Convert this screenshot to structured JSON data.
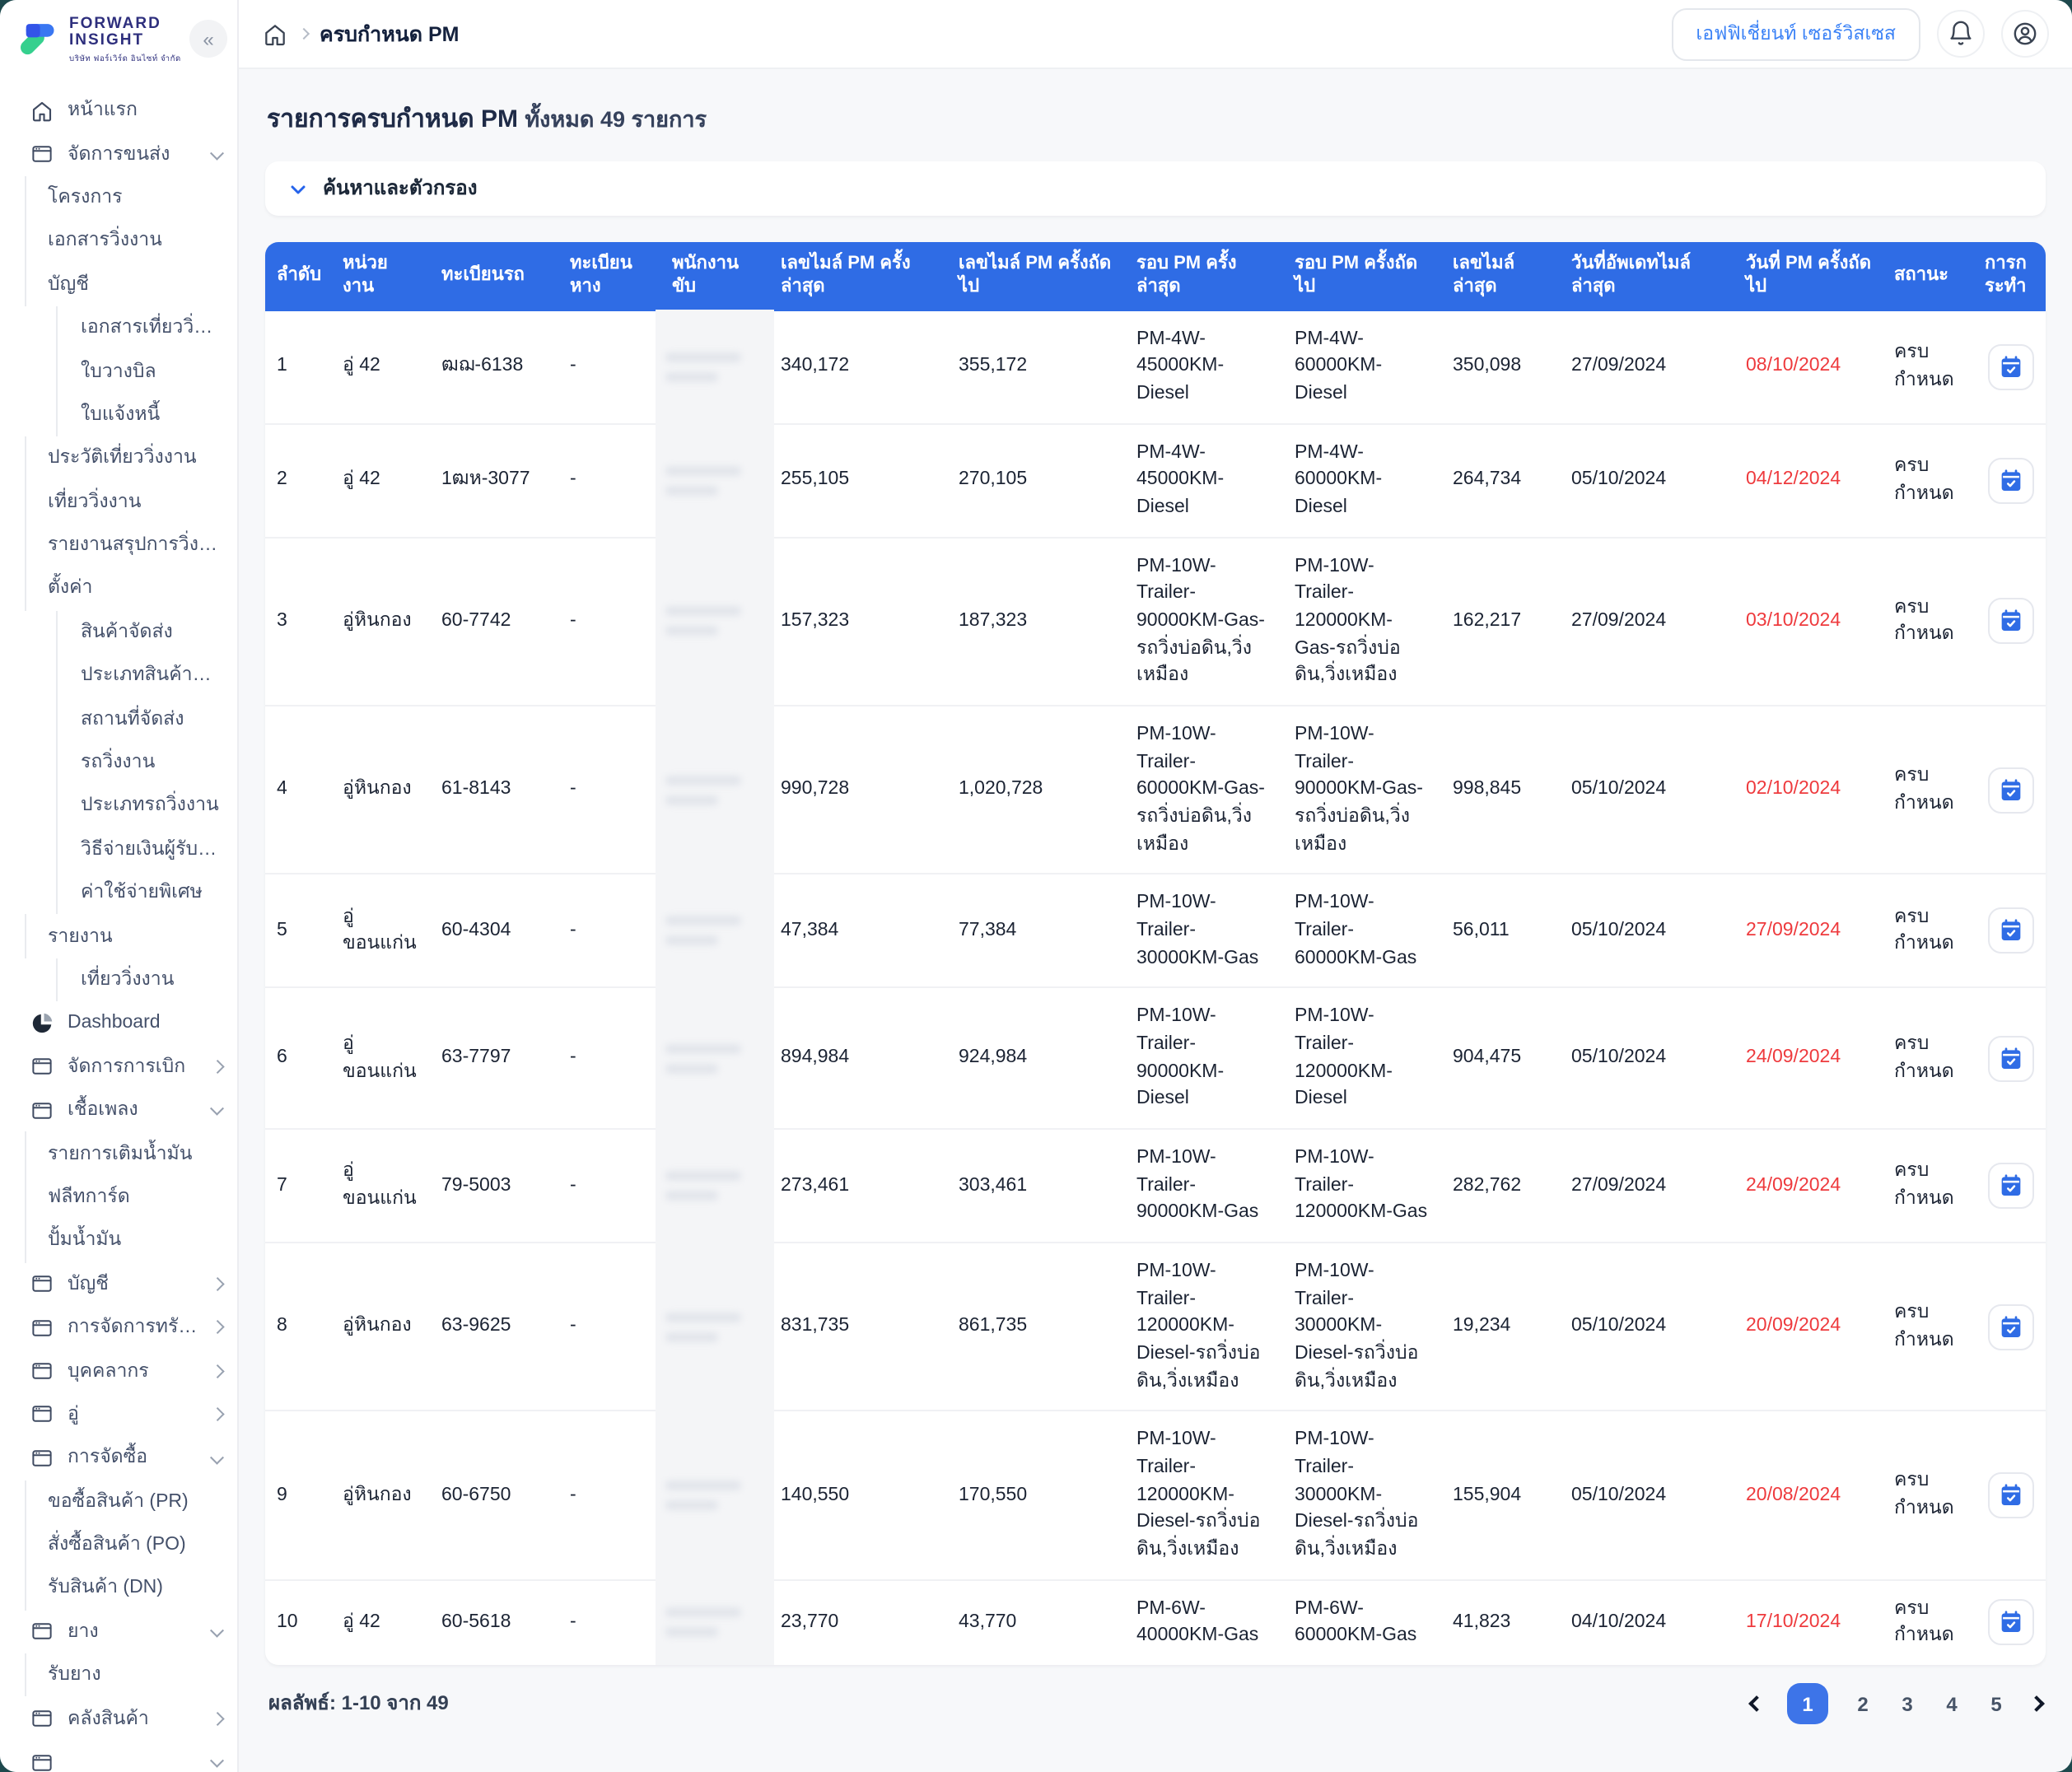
{
  "colors": {
    "accent": "#2f6ce5",
    "accent2": "#3d74e8",
    "danger": "#ee3a3d",
    "link": "#3b82f6"
  },
  "brand": {
    "line1": "FORWARD",
    "line2": "INSIGHT",
    "subtitle": "บริษัท ฟอร์เวิร์ด อินไซท์ จำกัด",
    "collapse_glyph": "«"
  },
  "header": {
    "breadcrumb_current": "ครบกำหนด PM",
    "company": "เอฟฟิเชี่ยนท์ เซอร์วิสเซส",
    "icons": [
      "home-icon",
      "bell-icon",
      "user-icon"
    ]
  },
  "sidebar": {
    "items": [
      {
        "label": "หน้าแรก",
        "icon": "home",
        "level": 0
      },
      {
        "label": "จัดการขนส่ง",
        "icon": "window",
        "level": 0,
        "chevron": "down"
      },
      {
        "label": "โครงการ",
        "level": 1
      },
      {
        "label": "เอกสารวิ่งงาน",
        "level": 1
      },
      {
        "label": "บัญชี",
        "level": 1
      },
      {
        "label": "เอกสารเที่ยววิ่งงาน (ตั๋ว)",
        "level": 2
      },
      {
        "label": "ใบวางบิล",
        "level": 2
      },
      {
        "label": "ใบแจ้งหนี้",
        "level": 2
      },
      {
        "label": "ประวัติเที่ยววิ่งงาน",
        "level": 1
      },
      {
        "label": "เที่ยววิ่งงาน",
        "level": 1
      },
      {
        "label": "รายงานสรุปการวิ่งงาน",
        "level": 1
      },
      {
        "label": "ตั้งค่า",
        "level": 1
      },
      {
        "label": "สินค้าจัดส่ง",
        "level": 2
      },
      {
        "label": "ประเภทสินค้าจัดส่ง",
        "level": 2
      },
      {
        "label": "สถานที่จัดส่ง",
        "level": 2
      },
      {
        "label": "รถวิ่งงาน",
        "level": 2
      },
      {
        "label": "ประเภทรถวิ่งงาน",
        "level": 2
      },
      {
        "label": "วิธีจ่ายเงินผู้รับเหมา",
        "level": 2
      },
      {
        "label": "ค่าใช้จ่ายพิเศษ",
        "level": 2
      },
      {
        "label": "รายงาน",
        "level": 1
      },
      {
        "label": "เที่ยววิ่งงาน",
        "level": 2
      },
      {
        "label": "Dashboard",
        "icon": "pie",
        "level": 0
      },
      {
        "label": "จัดการการเบิก",
        "icon": "window",
        "level": 0,
        "chevron": "right"
      },
      {
        "label": "เชื้อเพลง",
        "icon": "window",
        "level": 0,
        "chevron": "down"
      },
      {
        "label": "รายการเติมน้ำมัน",
        "level": 1
      },
      {
        "label": "ฟลีทการ์ด",
        "level": 1
      },
      {
        "label": "ปั้มน้ำมัน",
        "level": 1
      },
      {
        "label": "บัญชี",
        "icon": "window",
        "level": 0,
        "chevron": "right"
      },
      {
        "label": "การจัดการทรัพยากร",
        "icon": "window",
        "level": 0,
        "chevron": "right"
      },
      {
        "label": "บุคคลากร",
        "icon": "window",
        "level": 0,
        "chevron": "right"
      },
      {
        "label": "อู่",
        "icon": "window",
        "level": 0,
        "chevron": "right"
      },
      {
        "label": "การจัดซื้อ",
        "icon": "window",
        "level": 0,
        "chevron": "down"
      },
      {
        "label": "ขอซื้อสินค้า (PR)",
        "level": 1
      },
      {
        "label": "สั่งซื้อสินค้า (PO)",
        "level": 1
      },
      {
        "label": "รับสินค้า (DN)",
        "level": 1
      },
      {
        "label": "ยาง",
        "icon": "window",
        "level": 0,
        "chevron": "down"
      },
      {
        "label": "รับยาง",
        "level": 1
      },
      {
        "label": "คลังสินค้า",
        "icon": "window",
        "level": 0,
        "chevron": "right"
      },
      {
        "label": "",
        "icon": "window",
        "level": 0,
        "chevron": "down"
      }
    ]
  },
  "page": {
    "title": "รายการครบกำหนด PM",
    "title_count": "ทั้งหมด 49 รายการ",
    "filter_label": "ค้นหาและตัวกรอง"
  },
  "table": {
    "columns": [
      "ลำดับ",
      "หน่วยงาน",
      "ทะเบียนรถ",
      "ทะเบียนหาง",
      "พนักงานขับ",
      "เลขไมล์ PM ครั้งล่าสุด",
      "เลขไมล์ PM ครั้งถัดไป",
      "รอบ PM ครั้งล่าสุด",
      "รอบ PM ครั้งถัดไป",
      "เลขไมล์ล่าสุด",
      "วันที่อัพเดทไมล์ล่าสุด",
      "วันที่ PM ครั้งถัดไป",
      "สถานะ",
      "การกระทำ"
    ],
    "driver_redacted": true,
    "rows": [
      {
        "no": "1",
        "unit": "อู่ 42",
        "truck": "ฒฌ-6138",
        "trailer": "-",
        "driver": "",
        "last_pm_mile": "340,172",
        "next_pm_mile": "355,172",
        "last_pm_round": "PM-4W-45000KM-Diesel",
        "next_pm_round": "PM-4W-60000KM-Diesel",
        "latest_mile": "350,098",
        "mile_updated": "27/09/2024",
        "next_pm_date": "08/10/2024",
        "status": "ครบกำหนด"
      },
      {
        "no": "2",
        "unit": "อู่ 42",
        "truck": "1ฒห-3077",
        "trailer": "-",
        "driver": "",
        "last_pm_mile": "255,105",
        "next_pm_mile": "270,105",
        "last_pm_round": "PM-4W-45000KM-Diesel",
        "next_pm_round": "PM-4W-60000KM-Diesel",
        "latest_mile": "264,734",
        "mile_updated": "05/10/2024",
        "next_pm_date": "04/12/2024",
        "status": "ครบกำหนด"
      },
      {
        "no": "3",
        "unit": "อู่หินกอง",
        "truck": "60-7742",
        "trailer": "-",
        "driver": "",
        "last_pm_mile": "157,323",
        "next_pm_mile": "187,323",
        "last_pm_round": "PM-10W-Trailer-90000KM-Gas-รถวิ่งบ่อดิน,วิ่งเหมือง",
        "next_pm_round": "PM-10W-Trailer-120000KM-Gas-รถวิ่งบ่อดิน,วิ่งเหมือง",
        "latest_mile": "162,217",
        "mile_updated": "27/09/2024",
        "next_pm_date": "03/10/2024",
        "status": "ครบกำหนด"
      },
      {
        "no": "4",
        "unit": "อู่หินกอง",
        "truck": "61-8143",
        "trailer": "-",
        "driver": "",
        "last_pm_mile": "990,728",
        "next_pm_mile": "1,020,728",
        "last_pm_round": "PM-10W-Trailer-60000KM-Gas-รถวิ่งบ่อดิน,วิ่งเหมือง",
        "next_pm_round": "PM-10W-Trailer-90000KM-Gas-รถวิ่งบ่อดิน,วิ่งเหมือง",
        "latest_mile": "998,845",
        "mile_updated": "05/10/2024",
        "next_pm_date": "02/10/2024",
        "status": "ครบกำหนด"
      },
      {
        "no": "5",
        "unit": "อู่ขอนแก่น",
        "truck": "60-4304",
        "trailer": "-",
        "driver": "",
        "last_pm_mile": "47,384",
        "next_pm_mile": "77,384",
        "last_pm_round": "PM-10W-Trailer-30000KM-Gas",
        "next_pm_round": "PM-10W-Trailer-60000KM-Gas",
        "latest_mile": "56,011",
        "mile_updated": "05/10/2024",
        "next_pm_date": "27/09/2024",
        "status": "ครบกำหนด"
      },
      {
        "no": "6",
        "unit": "อู่ขอนแก่น",
        "truck": "63-7797",
        "trailer": "-",
        "driver": "",
        "last_pm_mile": "894,984",
        "next_pm_mile": "924,984",
        "last_pm_round": "PM-10W-Trailer-90000KM-Diesel",
        "next_pm_round": "PM-10W-Trailer-120000KM-Diesel",
        "latest_mile": "904,475",
        "mile_updated": "05/10/2024",
        "next_pm_date": "24/09/2024",
        "status": "ครบกำหนด"
      },
      {
        "no": "7",
        "unit": "อู่ขอนแก่น",
        "truck": "79-5003",
        "trailer": "-",
        "driver": "",
        "last_pm_mile": "273,461",
        "next_pm_mile": "303,461",
        "last_pm_round": "PM-10W-Trailer-90000KM-Gas",
        "next_pm_round": "PM-10W-Trailer-120000KM-Gas",
        "latest_mile": "282,762",
        "mile_updated": "27/09/2024",
        "next_pm_date": "24/09/2024",
        "status": "ครบกำหนด"
      },
      {
        "no": "8",
        "unit": "อู่หินกอง",
        "truck": "63-9625",
        "trailer": "-",
        "driver": "",
        "last_pm_mile": "831,735",
        "next_pm_mile": "861,735",
        "last_pm_round": "PM-10W-Trailer-120000KM-Diesel-รถวิ่งบ่อดิน,วิ่งเหมือง",
        "next_pm_round": "PM-10W-Trailer-30000KM-Diesel-รถวิ่งบ่อดิน,วิ่งเหมือง",
        "latest_mile": "19,234",
        "mile_updated": "05/10/2024",
        "next_pm_date": "20/09/2024",
        "status": "ครบกำหนด"
      },
      {
        "no": "9",
        "unit": "อู่หินกอง",
        "truck": "60-6750",
        "trailer": "-",
        "driver": "",
        "last_pm_mile": "140,550",
        "next_pm_mile": "170,550",
        "last_pm_round": "PM-10W-Trailer-120000KM-Diesel-รถวิ่งบ่อดิน,วิ่งเหมือง",
        "next_pm_round": "PM-10W-Trailer-30000KM-Diesel-รถวิ่งบ่อดิน,วิ่งเหมือง",
        "latest_mile": "155,904",
        "mile_updated": "05/10/2024",
        "next_pm_date": "20/08/2024",
        "status": "ครบกำหนด"
      },
      {
        "no": "10",
        "unit": "อู่ 42",
        "truck": "60-5618",
        "trailer": "-",
        "driver": "",
        "last_pm_mile": "23,770",
        "next_pm_mile": "43,770",
        "last_pm_round": "PM-6W-40000KM-Gas",
        "next_pm_round": "PM-6W-60000KM-Gas",
        "latest_mile": "41,823",
        "mile_updated": "04/10/2024",
        "next_pm_date": "17/10/2024",
        "status": "ครบกำหนด"
      }
    ]
  },
  "pagination": {
    "summary": "ผลลัพธ์: 1-10 จาก 49",
    "pages": [
      "1",
      "2",
      "3",
      "4",
      "5"
    ],
    "active": "1"
  }
}
